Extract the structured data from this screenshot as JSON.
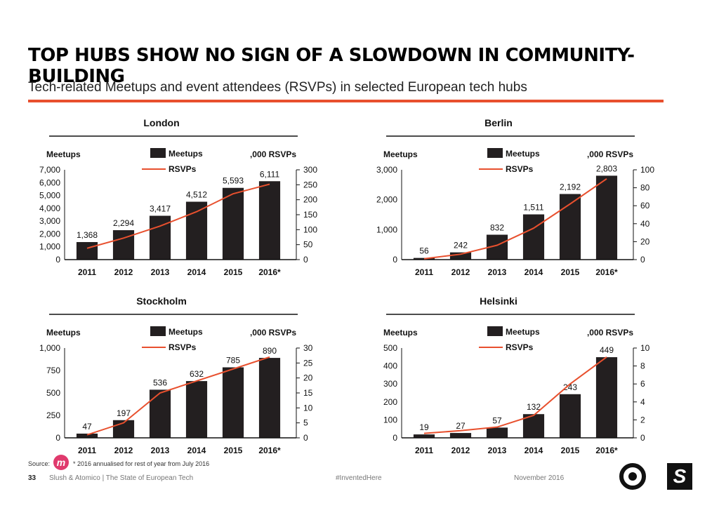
{
  "header": {
    "title": "TOP HUBS SHOW NO SIGN OF A SLOWDOWN IN COMMUNITY-BUILDING",
    "subtitle": "Tech-related Meetups and event attendees (RSVPs) in selected European tech hubs"
  },
  "chart_data": [
    {
      "type": "bar",
      "title": "London",
      "categories": [
        "2011",
        "2012",
        "2013",
        "2014",
        "2015",
        "2016*"
      ],
      "series": [
        {
          "name": "Meetups",
          "values": [
            1368,
            2294,
            3417,
            4512,
            5593,
            6111
          ],
          "labels": [
            "1,368",
            "2,294",
            "3,417",
            "4,512",
            "5,593",
            "6,111"
          ]
        },
        {
          "name": "RSVPs",
          "values": [
            38,
            72,
            112,
            160,
            220,
            252
          ]
        }
      ],
      "ylabel_left": "Meetups",
      "ylabel_right": ",000 RSVPs",
      "ylim_left": [
        0,
        7000
      ],
      "ylim_right": [
        0,
        300
      ],
      "ticks_left": [
        "0",
        "1,000",
        "2,000",
        "3,000",
        "4,000",
        "5,000",
        "6,000",
        "7,000"
      ],
      "ticks_right": [
        "0",
        "50",
        "100",
        "150",
        "200",
        "250",
        "300"
      ],
      "legend": "top-center"
    },
    {
      "type": "bar",
      "title": "Berlin",
      "categories": [
        "2011",
        "2012",
        "2013",
        "2014",
        "2015",
        "2016*"
      ],
      "series": [
        {
          "name": "Meetups",
          "values": [
            56,
            242,
            832,
            1511,
            2192,
            2803
          ],
          "labels": [
            "56",
            "242",
            "832",
            "1,511",
            "2,192",
            "2,803"
          ]
        },
        {
          "name": "RSVPs",
          "values": [
            1,
            6,
            16,
            35,
            62,
            90
          ]
        }
      ],
      "ylabel_left": "Meetups",
      "ylabel_right": ",000 RSVPs",
      "ylim_left": [
        0,
        3000
      ],
      "ylim_right": [
        0,
        100
      ],
      "ticks_left": [
        "0",
        "1,000",
        "2,000",
        "3,000"
      ],
      "ticks_right": [
        "0",
        "20",
        "40",
        "60",
        "80",
        "100"
      ],
      "legend": "top-center"
    },
    {
      "type": "bar",
      "title": "Stockholm",
      "categories": [
        "2011",
        "2012",
        "2013",
        "2014",
        "2015",
        "2016*"
      ],
      "series": [
        {
          "name": "Meetups",
          "values": [
            47,
            197,
            536,
            632,
            785,
            890
          ],
          "labels": [
            "47",
            "197",
            "536",
            "632",
            "785",
            "890"
          ]
        },
        {
          "name": "RSVPs",
          "values": [
            1,
            5,
            15,
            19,
            23,
            27
          ]
        }
      ],
      "ylabel_left": "Meetups",
      "ylabel_right": ",000 RSVPs",
      "ylim_left": [
        0,
        1000
      ],
      "ylim_right": [
        0,
        30
      ],
      "ticks_left": [
        "0",
        "250",
        "500",
        "750",
        "1,000"
      ],
      "ticks_right": [
        "0",
        "5",
        "10",
        "15",
        "20",
        "25",
        "30"
      ],
      "legend": "top-center"
    },
    {
      "type": "bar",
      "title": "Helsinki",
      "categories": [
        "2011",
        "2012",
        "2013",
        "2014",
        "2015",
        "2016*"
      ],
      "series": [
        {
          "name": "Meetups",
          "values": [
            19,
            27,
            57,
            132,
            243,
            449
          ],
          "labels": [
            "19",
            "27",
            "57",
            "132",
            "243",
            "449"
          ]
        },
        {
          "name": "RSVPs",
          "values": [
            0.5,
            0.8,
            1.2,
            2.5,
            6,
            9
          ]
        }
      ],
      "ylabel_left": "Meetups",
      "ylabel_right": ",000 RSVPs",
      "ylim_left": [
        0,
        500
      ],
      "ylim_right": [
        0,
        10
      ],
      "ticks_left": [
        "0",
        "100",
        "200",
        "300",
        "400",
        "500"
      ],
      "ticks_right": [
        "0",
        "2",
        "4",
        "6",
        "8",
        "10"
      ],
      "legend": "top-center"
    }
  ],
  "colors": {
    "bar": "#231f20",
    "line": "#e8502e",
    "accent": "#e8502e",
    "text": "#111111",
    "badge": "#e03a6d"
  },
  "footer": {
    "source_label": "Source:",
    "source_badge": "m",
    "source_note": "* 2016 annualised for rest of year from July 2016",
    "page_number": "33",
    "org": "Slush & Atomico  |  The State of European Tech",
    "hashtag": "#InventedHere",
    "date": "November 2016"
  }
}
